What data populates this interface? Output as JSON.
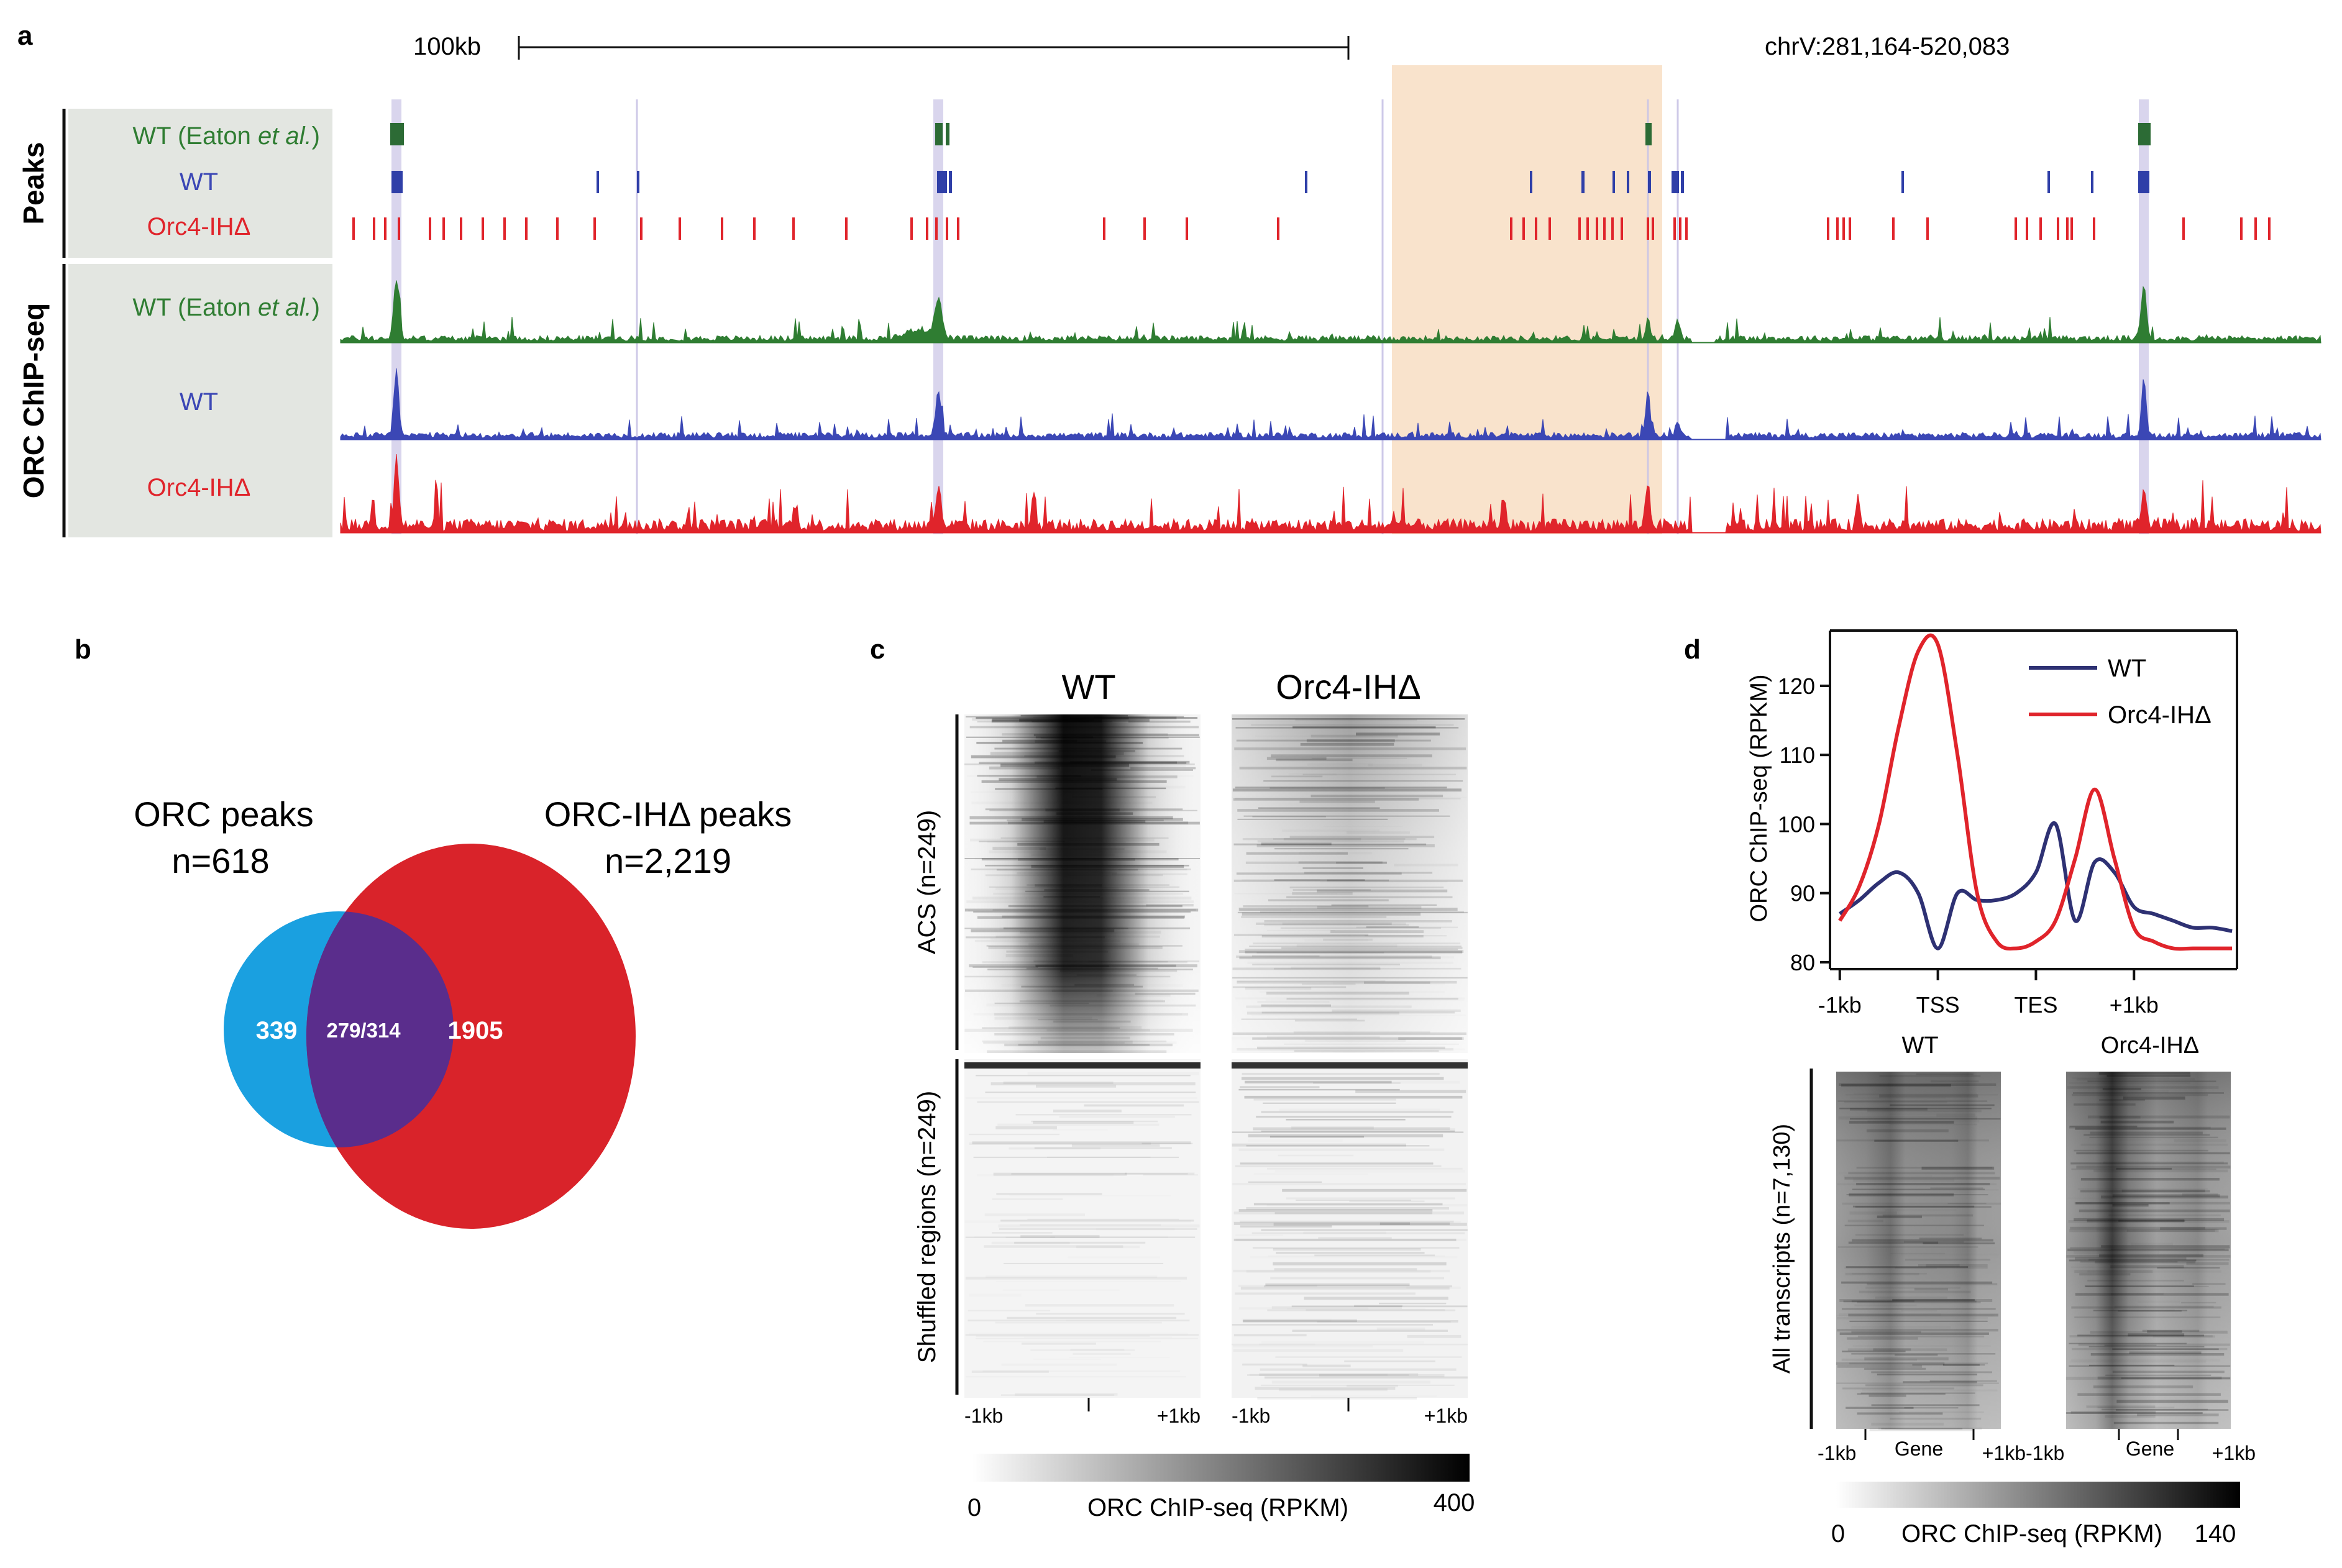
{
  "panel_a": {
    "letter": "a",
    "scale_label": "100kb",
    "coord_label": "chrV:281,164-520,083",
    "group_peaks": "Peaks",
    "group_chip": "ORC ChIP-seq",
    "peaks_tracks": [
      {
        "label_pre": "WT (Eaton ",
        "label_em": "et al.",
        "label_post": ")",
        "color": "#2f7d32"
      },
      {
        "label_pre": "WT",
        "label_em": "",
        "label_post": "",
        "color": "#3b47b5"
      },
      {
        "label_pre": "Orc4-IHΔ",
        "label_em": "",
        "label_post": "",
        "color": "#e0242b"
      }
    ],
    "chip_tracks": [
      {
        "label_pre": "WT (Eaton ",
        "label_em": "et al.",
        "label_post": ")",
        "color": "#2f7d32"
      },
      {
        "label_pre": "WT",
        "label_em": "",
        "label_post": "",
        "color": "#3b47b5"
      },
      {
        "label_pre": "Orc4-IHΔ",
        "label_em": "",
        "label_post": "",
        "color": "#e0242b"
      }
    ],
    "highlight_color": "#f9e3cc"
  },
  "panel_b": {
    "letter": "b",
    "left_title": "ORC peaks",
    "left_n": "n=618",
    "right_title": "ORC-IHΔ peaks",
    "right_n": "n=2,219",
    "left_only": "339",
    "overlap": "279/314",
    "right_only": "1905",
    "left_color": "#1aa0e0",
    "overlap_color": "#5a2d8c",
    "right_color": "#d9232a"
  },
  "panel_c": {
    "letter": "c",
    "col_wt": "WT",
    "col_mut": "Orc4-IHΔ",
    "row_acs": "ACS (n=249)",
    "row_shuffled": "Shuffled regions (n=249)",
    "x_left": "-1kb",
    "x_right": "+1kb",
    "cbar_min": "0",
    "cbar_label": "ORC ChIP-seq (RPKM)",
    "cbar_max": "400"
  },
  "panel_d": {
    "letter": "d",
    "ylabel": "ORC ChIP-seq (RPKM)",
    "yticks": [
      "80",
      "90",
      "100",
      "110",
      "120"
    ],
    "xticks": [
      "-1kb",
      "TSS",
      "TES",
      "+1kb"
    ],
    "legend_wt": "WT",
    "legend_mut": "Orc4-IHΔ",
    "hm_wt": "WT",
    "hm_mut": "Orc4-IHΔ",
    "hm_row": "All transcripts (n=7,130)",
    "hm_x_left": "-1kb",
    "hm_x_mid": "Gene",
    "hm_x_right": "+1kb",
    "cbar_min": "0",
    "cbar_label": "ORC ChIP-seq (RPKM)",
    "cbar_max": "140",
    "wt_color": "#2e3173",
    "mut_color": "#e0242b"
  },
  "chart_data": {
    "type": "line",
    "title": "",
    "xlabel": "",
    "ylabel": "ORC ChIP-seq (RPKM)",
    "ylim": [
      79,
      128
    ],
    "x": [
      -1.0,
      -0.8,
      -0.6,
      -0.4,
      -0.2,
      0.0,
      0.2,
      0.4,
      0.6,
      0.8,
      1.0,
      1.2,
      1.4,
      1.6,
      1.8,
      2.0,
      2.2,
      2.4,
      2.6,
      2.8,
      3.0
    ],
    "x_tick_positions": [
      -1.0,
      0.0,
      1.0,
      2.0
    ],
    "x_tick_labels": [
      "-1kb",
      "TSS",
      "TES",
      "+1kb"
    ],
    "series": [
      {
        "name": "WT",
        "values": [
          87,
          89,
          91.5,
          93,
          90,
          82,
          90,
          89,
          89,
          90,
          93,
          100,
          86,
          94.5,
          93,
          88,
          87,
          86,
          85,
          85,
          84.5
        ]
      },
      {
        "name": "Orc4-IHΔ",
        "values": [
          86,
          91,
          100,
          114,
          125,
          126,
          110,
          90,
          83,
          82,
          83,
          86,
          95,
          105,
          95,
          85,
          83,
          82,
          82,
          82,
          82
        ]
      }
    ]
  }
}
